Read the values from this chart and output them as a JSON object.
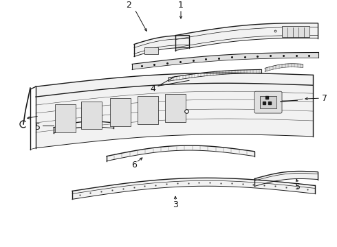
{
  "bg_color": "#ffffff",
  "line_color": "#1a1a1a",
  "fill_color": "#f2f2f2",
  "fill_dark": "#e0e0e0",
  "lw_main": 1.0,
  "lw_thin": 0.5,
  "label_fs": 9,
  "parts": {
    "part1_label": "1",
    "part2_label": "2",
    "part3_label": "3",
    "part4_label": "4",
    "part5a_label": "5",
    "part5b_label": "5",
    "part6_label": "6",
    "part7_label": "7"
  }
}
